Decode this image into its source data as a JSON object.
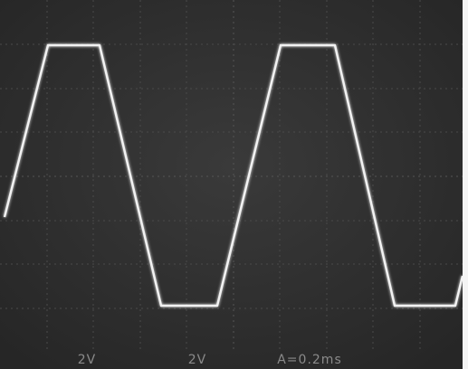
{
  "readout": {
    "channel_1": "2V",
    "channel_2": "2V",
    "timebase": "A=0.2ms"
  }
}
